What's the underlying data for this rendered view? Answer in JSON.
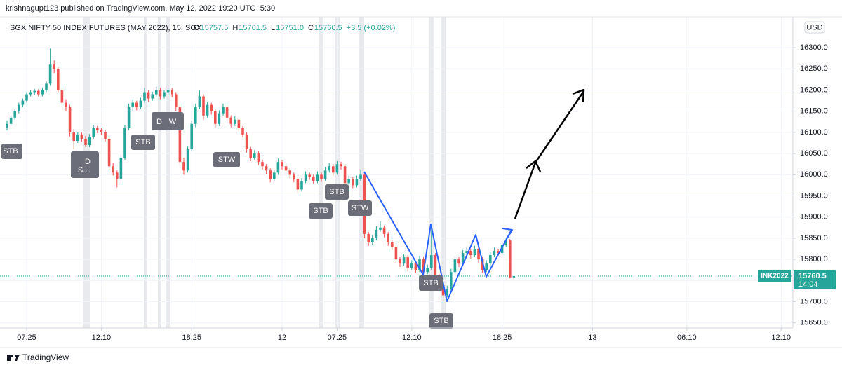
{
  "header": {
    "published": "krishnagupt123 published on TradingView.com, May 12, 2022 19:20 UTC+5:30"
  },
  "footer": {
    "brand": "TradingView"
  },
  "chart_data": {
    "type": "candlestick",
    "title": "SGX NIFTY 50 INDEX FUTURES (MAY 2022), 15, SGX",
    "legend_ohlc": [
      {
        "label": "O",
        "value": "15757.5"
      },
      {
        "label": "H",
        "value": "15761.5"
      },
      {
        "label": "L",
        "value": "15751.0"
      },
      {
        "label": "C",
        "value": "15760.5"
      }
    ],
    "change": "+3.5 (+0.02%)",
    "currency": "USD",
    "symbol_tag": "INK2022",
    "price_tag": "15760.5",
    "countdown": "14:04",
    "annotations": [
      "STB",
      "D",
      "S…",
      "STB",
      "D",
      "W",
      "STW",
      "STB",
      "STB",
      "STW",
      "STB",
      "STB"
    ],
    "up_color": "#26a69a",
    "down_color": "#ef5350",
    "grid": true,
    "xlim": [
      0,
      200
    ],
    "xticks": [
      {
        "value": 5,
        "label": "07:25"
      },
      {
        "value": 24,
        "label": "12:10"
      },
      {
        "value": 47,
        "label": "18:25"
      },
      {
        "value": 70,
        "label": "12"
      },
      {
        "value": 84,
        "label": "07:25"
      },
      {
        "value": 103,
        "label": "12:10"
      },
      {
        "value": 126,
        "label": "18:25"
      },
      {
        "value": 149,
        "label": "13"
      },
      {
        "value": 173,
        "label": "06:10"
      },
      {
        "value": 197,
        "label": "12:10"
      }
    ],
    "ylim": [
      15638,
      16363
    ],
    "yticks": [
      {
        "value": 15650,
        "label": "15650.0"
      },
      {
        "value": 15700,
        "label": "15700.0"
      },
      {
        "value": 15750,
        "label": "15750.0"
      },
      {
        "value": 15800,
        "label": "15800.0"
      },
      {
        "value": 15850,
        "label": "15850.0"
      },
      {
        "value": 15900,
        "label": "15900.0"
      },
      {
        "value": 15950,
        "label": "15950.0"
      },
      {
        "value": 16000,
        "label": "16000.0"
      },
      {
        "value": 16050,
        "label": "16050.0"
      },
      {
        "value": 16100,
        "label": "16100.0"
      },
      {
        "value": 16150,
        "label": "16150.0"
      },
      {
        "value": 16200,
        "label": "16200.0"
      },
      {
        "value": 16250,
        "label": "16250.0"
      },
      {
        "value": 16300,
        "label": "16300.0"
      }
    ],
    "series": [
      {
        "name": "SGX NIFTY 50 INDEX FUTURES",
        "ohlc": [
          [
            16110,
            16128,
            16105,
            16120
          ],
          [
            16120,
            16140,
            16115,
            16135
          ],
          [
            16135,
            16155,
            16130,
            16150
          ],
          [
            16150,
            16170,
            16145,
            16165
          ],
          [
            16165,
            16180,
            16160,
            16175
          ],
          [
            16175,
            16195,
            16170,
            16190
          ],
          [
            16190,
            16200,
            16185,
            16195
          ],
          [
            16195,
            16203,
            16188,
            16198
          ],
          [
            16198,
            16202,
            16185,
            16190
          ],
          [
            16190,
            16205,
            16185,
            16200
          ],
          [
            16200,
            16220,
            16195,
            16215
          ],
          [
            16215,
            16298,
            16210,
            16260
          ],
          [
            16260,
            16270,
            16240,
            16250
          ],
          [
            16250,
            16255,
            16195,
            16200
          ],
          [
            16200,
            16205,
            16165,
            16170
          ],
          [
            16170,
            16178,
            16150,
            16160
          ],
          [
            16160,
            16165,
            16090,
            16100
          ],
          [
            16100,
            16108,
            16060,
            16080
          ],
          [
            16080,
            16100,
            16075,
            16095
          ],
          [
            16095,
            16100,
            16078,
            16085
          ],
          [
            16085,
            16092,
            16065,
            16070
          ],
          [
            16070,
            16096,
            16065,
            16090
          ],
          [
            16090,
            16118,
            16085,
            16110
          ],
          [
            16110,
            16115,
            16098,
            16105
          ],
          [
            16105,
            16110,
            16095,
            16100
          ],
          [
            16100,
            16105,
            16078,
            16085
          ],
          [
            16085,
            16090,
            16012,
            16020
          ],
          [
            16020,
            16028,
            15998,
            16005
          ],
          [
            16005,
            16010,
            15970,
            15990
          ],
          [
            15990,
            16048,
            15985,
            16040
          ],
          [
            16040,
            16118,
            16035,
            16110
          ],
          [
            16110,
            16168,
            16105,
            16160
          ],
          [
            16160,
            16178,
            16150,
            16170
          ],
          [
            16170,
            16175,
            16152,
            16160
          ],
          [
            16160,
            16182,
            16155,
            16175
          ],
          [
            16175,
            16205,
            16170,
            16195
          ],
          [
            16195,
            16200,
            16172,
            16180
          ],
          [
            16180,
            16196,
            16175,
            16190
          ],
          [
            16190,
            16208,
            16185,
            16200
          ],
          [
            16200,
            16205,
            16178,
            16185
          ],
          [
            16185,
            16200,
            16180,
            16195
          ],
          [
            16195,
            16206,
            16188,
            16200
          ],
          [
            16200,
            16205,
            16183,
            16190
          ],
          [
            16190,
            16195,
            16150,
            16160
          ],
          [
            16160,
            16165,
            16020,
            16030
          ],
          [
            16030,
            16040,
            16000,
            16010
          ],
          [
            16010,
            16068,
            16005,
            16060
          ],
          [
            16060,
            16128,
            16055,
            16120
          ],
          [
            16120,
            16168,
            16112,
            16160
          ],
          [
            16160,
            16200,
            16155,
            16185
          ],
          [
            16185,
            16190,
            16130,
            16140
          ],
          [
            16140,
            16172,
            16135,
            16165
          ],
          [
            16165,
            16170,
            16142,
            16150
          ],
          [
            16150,
            16155,
            16112,
            16120
          ],
          [
            16120,
            16152,
            16115,
            16145
          ],
          [
            16145,
            16168,
            16140,
            16160
          ],
          [
            16160,
            16165,
            16128,
            16135
          ],
          [
            16135,
            16140,
            16112,
            16120
          ],
          [
            16120,
            16138,
            16115,
            16130
          ],
          [
            16130,
            16135,
            16102,
            16110
          ],
          [
            16110,
            16115,
            16088,
            16095
          ],
          [
            16095,
            16100,
            16052,
            16060
          ],
          [
            16060,
            16066,
            16032,
            16040
          ],
          [
            16040,
            16058,
            16035,
            16050
          ],
          [
            16050,
            16055,
            16022,
            16030
          ],
          [
            16030,
            16036,
            16012,
            16020
          ],
          [
            16020,
            16025,
            16002,
            16010
          ],
          [
            16010,
            16015,
            15982,
            15990
          ],
          [
            15990,
            16012,
            15985,
            16005
          ],
          [
            16005,
            16038,
            16000,
            16030
          ],
          [
            16030,
            16035,
            16012,
            16020
          ],
          [
            16020,
            16025,
            16002,
            16010
          ],
          [
            16010,
            16015,
            15992,
            16000
          ],
          [
            16000,
            16005,
            15982,
            15990
          ],
          [
            15990,
            15995,
            15955,
            15965
          ],
          [
            15965,
            15992,
            15960,
            15985
          ],
          [
            15985,
            16008,
            15980,
            16000
          ],
          [
            16000,
            16005,
            15988,
            15995
          ],
          [
            15995,
            16000,
            15978,
            15985
          ],
          [
            15985,
            16008,
            15980,
            16000
          ],
          [
            16000,
            16005,
            15983,
            15990
          ],
          [
            15990,
            16018,
            15985,
            16010
          ],
          [
            16010,
            16028,
            16005,
            16020
          ],
          [
            16020,
            16025,
            15998,
            16005
          ],
          [
            16005,
            16032,
            16000,
            16025
          ],
          [
            16025,
            16030,
            16012,
            16020
          ],
          [
            16020,
            16025,
            15972,
            15980
          ],
          [
            15980,
            15998,
            15975,
            15990
          ],
          [
            15990,
            15995,
            15968,
            15975
          ],
          [
            15975,
            15998,
            15970,
            15990
          ],
          [
            15990,
            16010,
            15985,
            16000
          ],
          [
            16000,
            16005,
            15850,
            15860
          ],
          [
            15860,
            15865,
            15832,
            15840
          ],
          [
            15840,
            15858,
            15835,
            15850
          ],
          [
            15850,
            15878,
            15845,
            15870
          ],
          [
            15870,
            15890,
            15865,
            15875
          ],
          [
            15875,
            15880,
            15852,
            15860
          ],
          [
            15860,
            15865,
            15832,
            15840
          ],
          [
            15840,
            15845,
            15822,
            15830
          ],
          [
            15830,
            15835,
            15792,
            15800
          ],
          [
            15800,
            15805,
            15782,
            15790
          ],
          [
            15790,
            15812,
            15785,
            15805
          ],
          [
            15805,
            15810,
            15772,
            15780
          ],
          [
            15780,
            15798,
            15775,
            15790
          ],
          [
            15790,
            15795,
            15768,
            15775
          ],
          [
            15775,
            15808,
            15770,
            15800
          ],
          [
            15800,
            15805,
            15762,
            15770
          ],
          [
            15770,
            15788,
            15765,
            15780
          ],
          [
            15780,
            15880,
            15775,
            15810
          ],
          [
            15810,
            15815,
            15752,
            15760
          ],
          [
            15760,
            15765,
            15732,
            15740
          ],
          [
            15740,
            15745,
            15700,
            15715
          ],
          [
            15715,
            15738,
            15710,
            15730
          ],
          [
            15730,
            15778,
            15725,
            15770
          ],
          [
            15770,
            15808,
            15765,
            15800
          ],
          [
            15800,
            15805,
            15782,
            15790
          ],
          [
            15790,
            15822,
            15785,
            15815
          ],
          [
            15815,
            15828,
            15810,
            15820
          ],
          [
            15820,
            15825,
            15802,
            15810
          ],
          [
            15810,
            15832,
            15805,
            15825
          ],
          [
            15825,
            15830,
            15792,
            15800
          ],
          [
            15800,
            15805,
            15768,
            15775
          ],
          [
            15775,
            15798,
            15770,
            15790
          ],
          [
            15790,
            15818,
            15785,
            15810
          ],
          [
            15810,
            15828,
            15805,
            15820
          ],
          [
            15820,
            15825,
            15808,
            15815
          ],
          [
            15815,
            15842,
            15810,
            15835
          ],
          [
            15835,
            15852,
            15830,
            15845
          ],
          [
            15845,
            15848,
            15755,
            15757.5
          ],
          [
            15757.5,
            15761.5,
            15751,
            15760.5
          ]
        ]
      }
    ]
  }
}
